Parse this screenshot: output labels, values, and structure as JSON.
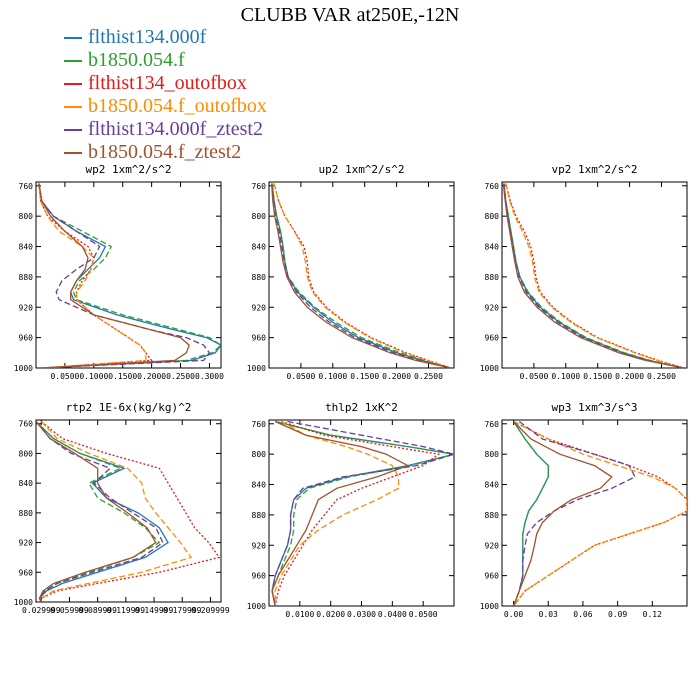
{
  "title": "CLUBB VAR at250E,-12N",
  "legend": [
    {
      "name": "flthist134.000f",
      "color": "#1f78b4"
    },
    {
      "name": "b1850.054.f",
      "color": "#2ca02c"
    },
    {
      "name": "flthist134_outofbox",
      "color": "#e41a1c"
    },
    {
      "name": "b1850.054.f_outofbox",
      "color": "#ff8c00"
    },
    {
      "name": "flthist134.000f_ztest2",
      "color": "#6a3d9a"
    },
    {
      "name": "b1850.054.f_ztest2",
      "color": "#a0522d"
    }
  ],
  "chart_data": [
    {
      "type": "line",
      "title": "wp2  1xm^2/s^2",
      "xlim": [
        0,
        0.32
      ],
      "ylim": [
        1000,
        755
      ],
      "xticks": [
        0.05,
        0.1,
        0.15,
        0.2,
        0.25,
        0.3
      ],
      "xtick_labels": [
        "0.0500",
        "0.1000",
        "0.1500",
        "0.2000",
        "0.2500",
        "0.3000"
      ],
      "yticks": [
        760,
        800,
        840,
        880,
        920,
        960,
        1000
      ],
      "ytick_labels": [
        "760",
        "800",
        "840",
        "880",
        "920",
        "960",
        "1000"
      ],
      "pressure": [
        757,
        780,
        800,
        820,
        840,
        855,
        870,
        885,
        900,
        910,
        930,
        950,
        960,
        970,
        980,
        990,
        1000
      ],
      "series": [
        {
          "values": [
            0.005,
            0.01,
            0.03,
            0.07,
            0.12,
            0.11,
            0.09,
            0.07,
            0.06,
            0.065,
            0.14,
            0.24,
            0.295,
            0.32,
            0.31,
            0.27,
            0.01
          ]
        },
        {
          "values": [
            0.005,
            0.01,
            0.03,
            0.08,
            0.13,
            0.12,
            0.1,
            0.075,
            0.065,
            0.07,
            0.15,
            0.25,
            0.3,
            0.32,
            0.305,
            0.26,
            0.01
          ]
        },
        {
          "values": [
            0.005,
            0.008,
            0.02,
            0.05,
            0.09,
            0.1,
            0.095,
            0.08,
            0.07,
            0.07,
            0.1,
            0.14,
            0.16,
            0.18,
            0.19,
            0.2,
            0.01
          ]
        },
        {
          "values": [
            0.005,
            0.008,
            0.02,
            0.04,
            0.08,
            0.1,
            0.095,
            0.085,
            0.07,
            0.07,
            0.1,
            0.14,
            0.16,
            0.18,
            0.19,
            0.19,
            0.01
          ]
        },
        {
          "values": [
            0.005,
            0.01,
            0.03,
            0.07,
            0.11,
            0.1,
            0.07,
            0.045,
            0.035,
            0.04,
            0.1,
            0.2,
            0.26,
            0.29,
            0.3,
            0.29,
            0.01
          ]
        },
        {
          "values": [
            0.005,
            0.01,
            0.025,
            0.05,
            0.08,
            0.09,
            0.085,
            0.07,
            0.06,
            0.06,
            0.1,
            0.2,
            0.25,
            0.265,
            0.26,
            0.24,
            0.01
          ]
        }
      ]
    },
    {
      "type": "line",
      "title": "up2  1xm^2/s^2",
      "xlim": [
        0,
        0.29
      ],
      "ylim": [
        1000,
        755
      ],
      "xticks": [
        0.05,
        0.1,
        0.15,
        0.2,
        0.25
      ],
      "xtick_labels": [
        "0.0500",
        "0.1000",
        "0.1500",
        "0.2000",
        "0.2500"
      ],
      "yticks": [
        760,
        800,
        840,
        880,
        920,
        960,
        1000
      ],
      "ytick_labels": [
        "760",
        "800",
        "840",
        "880",
        "920",
        "960",
        "1000"
      ],
      "pressure": [
        757,
        780,
        800,
        820,
        840,
        860,
        880,
        900,
        920,
        940,
        960,
        980,
        990,
        1000
      ],
      "series": [
        {
          "values": [
            0.005,
            0.008,
            0.012,
            0.018,
            0.022,
            0.025,
            0.03,
            0.045,
            0.07,
            0.1,
            0.14,
            0.2,
            0.24,
            0.285
          ]
        },
        {
          "values": [
            0.005,
            0.008,
            0.012,
            0.018,
            0.022,
            0.025,
            0.03,
            0.047,
            0.072,
            0.105,
            0.145,
            0.205,
            0.245,
            0.285
          ]
        },
        {
          "values": [
            0.008,
            0.015,
            0.025,
            0.04,
            0.055,
            0.06,
            0.062,
            0.07,
            0.09,
            0.12,
            0.16,
            0.215,
            0.25,
            0.285
          ]
        },
        {
          "values": [
            0.008,
            0.015,
            0.025,
            0.04,
            0.052,
            0.057,
            0.06,
            0.068,
            0.088,
            0.118,
            0.158,
            0.212,
            0.248,
            0.285
          ]
        },
        {
          "values": [
            0.004,
            0.007,
            0.01,
            0.016,
            0.02,
            0.024,
            0.03,
            0.043,
            0.065,
            0.095,
            0.135,
            0.195,
            0.235,
            0.285
          ]
        },
        {
          "values": [
            0.004,
            0.006,
            0.009,
            0.014,
            0.018,
            0.022,
            0.028,
            0.04,
            0.06,
            0.09,
            0.13,
            0.19,
            0.23,
            0.285
          ]
        }
      ]
    },
    {
      "type": "line",
      "title": "vp2  1xm^2/s^2",
      "xlim": [
        0,
        0.29
      ],
      "ylim": [
        1000,
        755
      ],
      "xticks": [
        0.05,
        0.1,
        0.15,
        0.2,
        0.25
      ],
      "xtick_labels": [
        "0.0500",
        "0.1000",
        "0.1500",
        "0.2000",
        "0.2500"
      ],
      "yticks": [
        760,
        800,
        840,
        880,
        920,
        960,
        1000
      ],
      "ytick_labels": [
        "760",
        "800",
        "840",
        "880",
        "920",
        "960",
        "1000"
      ],
      "pressure": [
        757,
        780,
        800,
        820,
        840,
        860,
        880,
        900,
        920,
        940,
        960,
        980,
        990,
        1000
      ],
      "series": [
        {
          "values": [
            0.003,
            0.006,
            0.01,
            0.014,
            0.018,
            0.022,
            0.028,
            0.04,
            0.06,
            0.09,
            0.13,
            0.19,
            0.23,
            0.285
          ]
        },
        {
          "values": [
            0.003,
            0.006,
            0.01,
            0.014,
            0.018,
            0.022,
            0.028,
            0.041,
            0.062,
            0.092,
            0.132,
            0.192,
            0.232,
            0.285
          ]
        },
        {
          "values": [
            0.006,
            0.013,
            0.022,
            0.035,
            0.045,
            0.05,
            0.053,
            0.06,
            0.08,
            0.11,
            0.15,
            0.21,
            0.245,
            0.285
          ]
        },
        {
          "values": [
            0.006,
            0.012,
            0.02,
            0.032,
            0.042,
            0.048,
            0.051,
            0.058,
            0.078,
            0.108,
            0.148,
            0.208,
            0.243,
            0.285
          ]
        },
        {
          "values": [
            0.003,
            0.006,
            0.009,
            0.013,
            0.017,
            0.021,
            0.027,
            0.038,
            0.058,
            0.087,
            0.127,
            0.187,
            0.228,
            0.285
          ]
        },
        {
          "values": [
            0.002,
            0.005,
            0.008,
            0.012,
            0.016,
            0.02,
            0.025,
            0.035,
            0.055,
            0.083,
            0.123,
            0.183,
            0.225,
            0.285
          ]
        }
      ]
    },
    {
      "type": "line",
      "title": "rtp2  1E-6x(kg/kg)^2",
      "xlim": [
        0,
        1.05
      ],
      "ylim": [
        1000,
        755
      ],
      "xticks": [
        0.03,
        0.19,
        0.35,
        0.51,
        0.67,
        0.83,
        0.99
      ],
      "xtick_labels": [
        "0.029999",
        "0.059999",
        "0.089999",
        "0.119999",
        "0.149999",
        "0.179999",
        "0.209999"
      ],
      "yticks": [
        760,
        800,
        840,
        880,
        920,
        960,
        1000
      ],
      "ytick_labels": [
        "760",
        "800",
        "840",
        "880",
        "920",
        "960",
        "1000"
      ],
      "pressure": [
        757,
        780,
        800,
        820,
        840,
        860,
        880,
        900,
        920,
        940,
        960,
        975,
        985,
        995,
        1000
      ],
      "series": [
        {
          "values": [
            0.0,
            0.1,
            0.25,
            0.5,
            0.32,
            0.4,
            0.58,
            0.7,
            0.75,
            0.62,
            0.35,
            0.15,
            0.06,
            0.02,
            0.03
          ]
        },
        {
          "values": [
            0.0,
            0.1,
            0.25,
            0.48,
            0.3,
            0.35,
            0.5,
            0.62,
            0.7,
            0.55,
            0.3,
            0.12,
            0.05,
            0.02,
            0.03
          ]
        },
        {
          "values": [
            0.03,
            0.15,
            0.4,
            0.7,
            0.75,
            0.8,
            0.85,
            0.9,
            0.98,
            1.04,
            0.7,
            0.35,
            0.12,
            0.03,
            0.03
          ]
        },
        {
          "values": [
            0.03,
            0.12,
            0.3,
            0.52,
            0.6,
            0.62,
            0.68,
            0.75,
            0.82,
            0.88,
            0.6,
            0.3,
            0.1,
            0.03,
            0.03
          ]
        },
        {
          "values": [
            0.0,
            0.08,
            0.2,
            0.42,
            0.33,
            0.42,
            0.55,
            0.68,
            0.72,
            0.6,
            0.32,
            0.12,
            0.05,
            0.02,
            0.03
          ]
        },
        {
          "values": [
            0.0,
            0.08,
            0.22,
            0.35,
            0.35,
            0.4,
            0.52,
            0.63,
            0.68,
            0.55,
            0.28,
            0.1,
            0.04,
            0.02,
            0.03
          ]
        }
      ]
    },
    {
      "type": "line",
      "title": "thlp2  1xK^2",
      "xlim": [
        0,
        0.06
      ],
      "ylim": [
        1000,
        755
      ],
      "xticks": [
        0.01,
        0.02,
        0.03,
        0.04,
        0.05
      ],
      "xtick_labels": [
        "0.0100",
        "0.0200",
        "0.0300",
        "0.0400",
        "0.0500"
      ],
      "yticks": [
        760,
        800,
        840,
        880,
        920,
        960,
        1000
      ],
      "ytick_labels": [
        "760",
        "800",
        "840",
        "880",
        "920",
        "960",
        "1000"
      ],
      "pressure": [
        757,
        775,
        790,
        800,
        815,
        830,
        845,
        860,
        880,
        900,
        920,
        940,
        960,
        980,
        1000
      ],
      "series": [
        {
          "values": [
            0.002,
            0.02,
            0.045,
            0.06,
            0.045,
            0.025,
            0.012,
            0.008,
            0.007,
            0.007,
            0.006,
            0.004,
            0.002,
            0.001,
            0.002
          ]
        },
        {
          "values": [
            0.002,
            0.02,
            0.045,
            0.06,
            0.046,
            0.026,
            0.013,
            0.009,
            0.008,
            0.008,
            0.007,
            0.005,
            0.003,
            0.001,
            0.002
          ]
        },
        {
          "values": [
            0.004,
            0.018,
            0.04,
            0.055,
            0.05,
            0.04,
            0.03,
            0.022,
            0.018,
            0.014,
            0.011,
            0.008,
            0.005,
            0.003,
            0.002
          ]
        },
        {
          "values": [
            0.004,
            0.012,
            0.025,
            0.032,
            0.04,
            0.042,
            0.042,
            0.035,
            0.024,
            0.016,
            0.01,
            0.007,
            0.004,
            0.002,
            0.002
          ]
        },
        {
          "values": [
            0.006,
            0.03,
            0.05,
            0.06,
            0.048,
            0.024,
            0.011,
            0.008,
            0.007,
            0.007,
            0.006,
            0.004,
            0.002,
            0.001,
            0.002
          ]
        },
        {
          "values": [
            0.002,
            0.012,
            0.03,
            0.038,
            0.045,
            0.035,
            0.022,
            0.016,
            0.014,
            0.012,
            0.009,
            0.006,
            0.003,
            0.001,
            0.002
          ]
        }
      ]
    },
    {
      "type": "line",
      "title": "wp3  1xm^3/s^3",
      "xlim": [
        -0.01,
        0.15
      ],
      "ylim": [
        1000,
        755
      ],
      "xticks": [
        0.0,
        0.03,
        0.06,
        0.09,
        0.12
      ],
      "xtick_labels": [
        "0.00",
        "0.03",
        "0.06",
        "0.09",
        "0.12"
      ],
      "yticks": [
        760,
        800,
        840,
        880,
        920,
        960,
        1000
      ],
      "ytick_labels": [
        "760",
        "800",
        "840",
        "880",
        "920",
        "960",
        "1000"
      ],
      "pressure": [
        757,
        780,
        800,
        815,
        830,
        845,
        860,
        875,
        890,
        905,
        920,
        940,
        960,
        980,
        1000
      ],
      "series": [
        {
          "values": [
            0.0,
            0.01,
            0.02,
            0.03,
            0.03,
            0.025,
            0.02,
            0.013,
            0.01,
            0.008,
            0.008,
            0.008,
            0.008,
            0.005,
            0.0
          ]
        },
        {
          "values": [
            0.0,
            0.01,
            0.02,
            0.03,
            0.03,
            0.025,
            0.02,
            0.013,
            0.01,
            0.008,
            0.008,
            0.008,
            0.008,
            0.005,
            0.0
          ]
        },
        {
          "values": [
            0.0,
            0.03,
            0.07,
            0.1,
            0.125,
            0.14,
            0.15,
            0.15,
            0.13,
            0.1,
            0.07,
            0.05,
            0.03,
            0.01,
            0.0
          ]
        },
        {
          "values": [
            0.0,
            0.03,
            0.06,
            0.09,
            0.12,
            0.14,
            0.15,
            0.15,
            0.13,
            0.1,
            0.07,
            0.05,
            0.03,
            0.01,
            0.0
          ]
        },
        {
          "values": [
            0.005,
            0.025,
            0.07,
            0.1,
            0.105,
            0.085,
            0.055,
            0.035,
            0.02,
            0.012,
            0.01,
            0.008,
            0.008,
            0.005,
            0.0
          ]
        },
        {
          "values": [
            0.0,
            0.015,
            0.04,
            0.07,
            0.085,
            0.075,
            0.05,
            0.035,
            0.025,
            0.02,
            0.018,
            0.015,
            0.01,
            0.005,
            0.0
          ]
        }
      ]
    }
  ]
}
